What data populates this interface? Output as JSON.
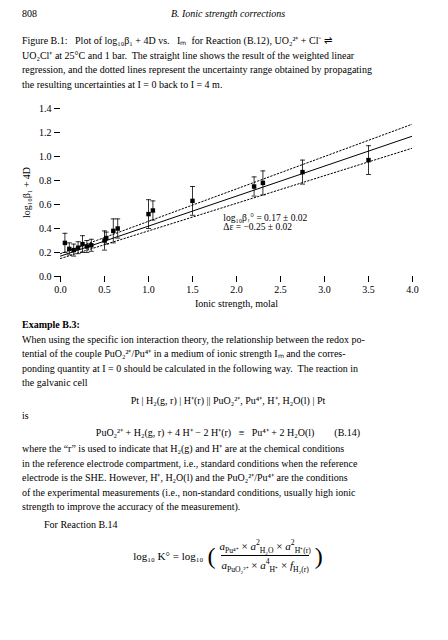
{
  "page": {
    "page_number": "808",
    "running_title": "B. Ionic strength corrections",
    "caption": [
      "Figure B.1:   Plot of log₁₀β₁ + 4D vs.   Iₘ  for Reaction (B.12), UO₂²⁺ + Cl⁻ ⇌",
      "UO₂Cl⁺ at 25°C and 1 bar.  The straight line shows the result of the weighted linear",
      "regression, and the dotted lines represent the uncertainty range obtained by propagating",
      "the resulting uncertainties at I = 0 back to I = 4 m."
    ],
    "example_title": "Example B.3:",
    "example_lines": [
      "When using the specific ion interaction theory, the relationship between the redox po-",
      "tential of the couple PuO₂²⁺/Pu⁴⁺ in a medium of ionic strength Iₘ and the corres-",
      "ponding quantity at I = 0 should be calculated in the following way.  The reaction in",
      "the galvanic cell"
    ],
    "cell": "Pt | H₂(g, r) | H⁺(r) || PuO₂²⁺, Pu⁴⁺, H⁺, H₂O(l) | Pt",
    "after_cell": "is",
    "reaction": "PuO₂²⁺ + H₂(g, r) + 4 H⁺ − 2 H⁺(r)   ≡   Pu⁴⁺ + 2 H₂O(l)        (B.14)",
    "where_lines": [
      "where the “r” is used to indicate that H₂(g) and H⁺ are at the chemical conditions",
      "in the reference electrode compartment, i.e., standard conditions when the reference",
      "electrode is the SHE. However, H⁺, H₂O(l) and the PuO₂²⁺/Pu⁴⁺ are the conditions",
      "of the experimental measurements (i.e., non-standard conditions, usually high ionic",
      "strength to improve the accuracy of the measurement)."
    ],
    "for_reaction": "For Reaction B.14",
    "equation": {
      "left": "log₁₀ K°  =  log₁₀",
      "brackets": [
        "(",
        ")"
      ],
      "numerator": [
        {
          "base": "a",
          "sub": "Pu⁴⁺"
        },
        "×",
        {
          "base": "a",
          "sup": "2",
          "sub": "H₂O"
        },
        "×",
        {
          "base": "a",
          "sup": "2",
          "sub": "H⁺(r)"
        }
      ],
      "denominator": [
        {
          "base": "a",
          "sub": "PuO₂²⁺"
        },
        "×",
        {
          "base": "a",
          "sup": "4",
          "sub": "H⁺"
        },
        "×",
        {
          "base": "f",
          "sub": "H₂(r)"
        }
      ]
    }
  },
  "chart_data": {
    "type": "scatter",
    "xlabel": "Ionic strength, molal",
    "ylabel": "log₁₀β₁ + 4D",
    "xlim": [
      0,
      4
    ],
    "ylim": [
      0,
      1.4
    ],
    "xticks": [
      {
        "value": 0,
        "label": "0.0"
      },
      0.5,
      {
        "value": 1,
        "label": "1.0"
      },
      1.5,
      {
        "value": 2,
        "label": "2.0"
      },
      2.5,
      {
        "value": 3,
        "label": "3.0"
      },
      3.5,
      {
        "value": 4,
        "label": "4.0"
      }
    ],
    "yticks": [
      {
        "value": 0,
        "label": "0.0"
      },
      0.2,
      0.4,
      0.6,
      0.8,
      {
        "value": 1.0,
        "label": "1.0"
      },
      1.2,
      1.4
    ],
    "grid": false,
    "series": [
      {
        "type": "scatter",
        "marker": "square",
        "color": "black",
        "x": [
          0.05,
          0.1,
          0.15,
          0.2,
          0.25,
          0.3,
          0.35,
          0.5,
          0.52,
          0.6,
          0.65,
          1.0,
          1.05,
          1.5,
          2.2,
          2.3,
          2.75,
          3.5
        ],
        "values": [
          0.28,
          0.23,
          0.22,
          0.24,
          0.27,
          0.25,
          0.26,
          0.3,
          0.32,
          0.38,
          0.4,
          0.52,
          0.55,
          0.63,
          0.75,
          0.78,
          0.87,
          0.97
        ],
        "y_err": [
          0.08,
          0.05,
          0.05,
          0.05,
          0.07,
          0.05,
          0.05,
          0.08,
          0.05,
          0.1,
          0.08,
          0.12,
          0.08,
          0.12,
          0.08,
          0.1,
          0.1,
          0.12
        ]
      },
      {
        "type": "line",
        "line_style": "solid",
        "color": "black",
        "x": [
          0,
          4
        ],
        "values": [
          0.17,
          1.17
        ]
      },
      {
        "type": "line",
        "line_style": "dotted",
        "color": "black",
        "x": [
          0,
          4
        ],
        "values": [
          0.19,
          1.27
        ]
      },
      {
        "type": "line",
        "line_style": "dotted",
        "color": "black",
        "x": [
          0,
          4
        ],
        "values": [
          0.15,
          1.07
        ]
      }
    ],
    "annotations": [
      {
        "x": 1.85,
        "y": 0.385,
        "text": [
          "log₁₀β₁° = 0.17 ± 0.02",
          "Δε = −0.25 ± 0.02"
        ]
      }
    ]
  }
}
